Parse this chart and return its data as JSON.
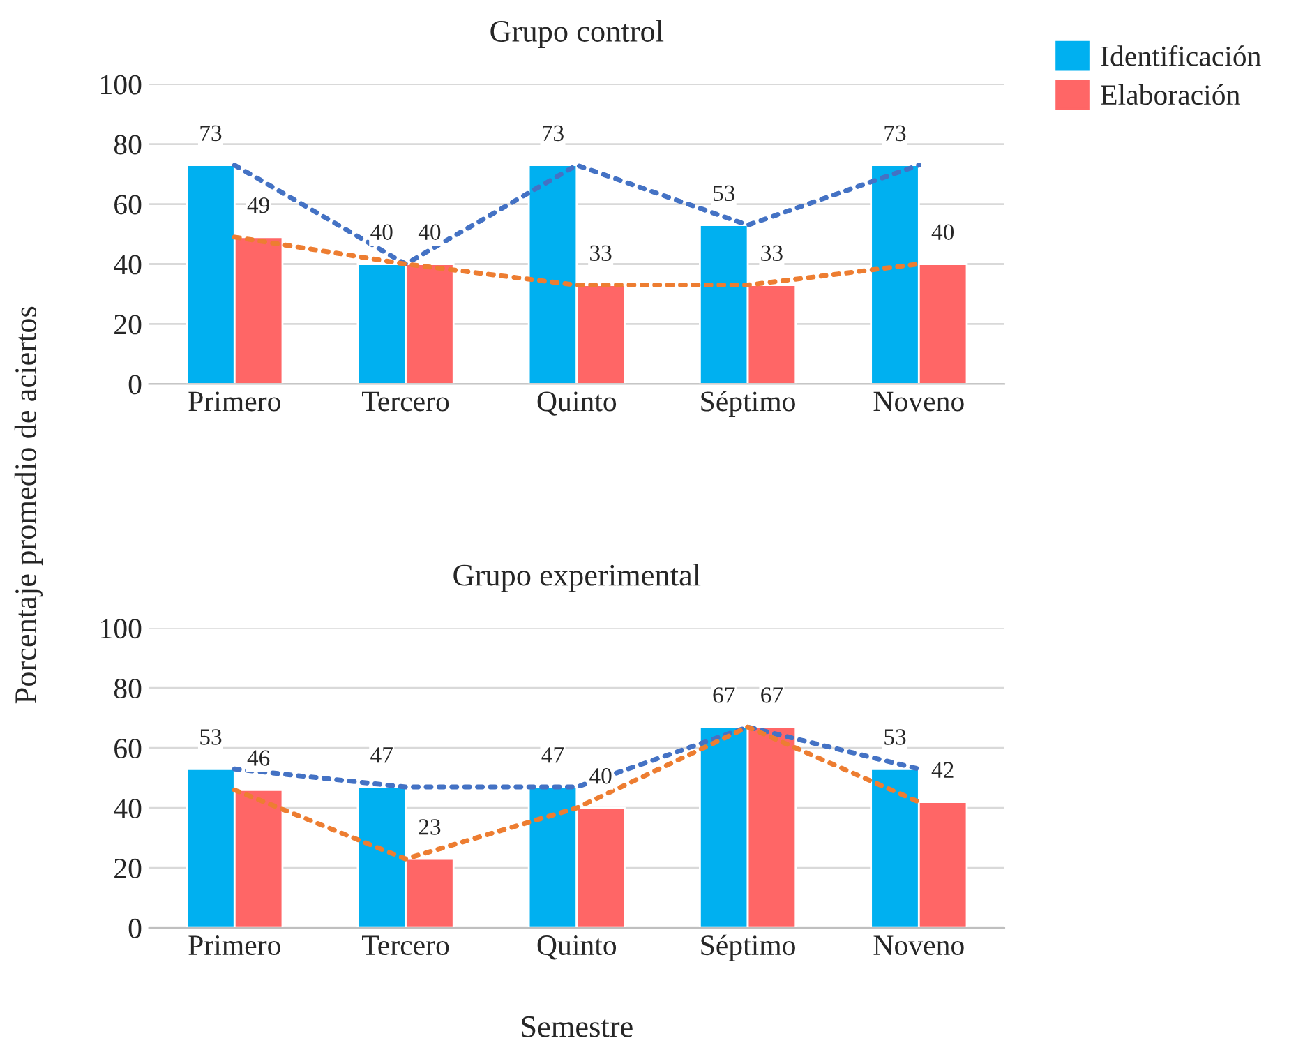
{
  "chart_data": [
    {
      "type": "bar",
      "title": "Grupo control",
      "ylabel": "Porcentaje promedio de aciertos",
      "categories": [
        "Primero",
        "Tercero",
        "Quinto",
        "Séptimo",
        "Noveno"
      ],
      "series": [
        {
          "name": "Identificación",
          "color": "#00b0f0",
          "values": [
            73,
            40,
            73,
            53,
            73
          ],
          "value_labels": [
            "73",
            "40",
            "73",
            "53",
            "73"
          ]
        },
        {
          "name": "Elaboración",
          "color": "#ff6666",
          "values": [
            49,
            40,
            33,
            33,
            40
          ],
          "value_labels": [
            "49",
            "40",
            "33",
            "33",
            "40"
          ]
        },
        {
          "type": "line",
          "color": "#4472c4",
          "values": [
            73,
            40,
            73,
            53,
            73
          ]
        },
        {
          "type": "line",
          "color": "#ed7d31",
          "values": [
            49,
            40,
            33,
            33,
            40
          ]
        }
      ],
      "ylim": [
        0,
        100
      ],
      "yticks": [
        0,
        20,
        40,
        60,
        80,
        100
      ],
      "grid": "y",
      "legend": "top right",
      "line_style": "dotted"
    },
    {
      "type": "bar",
      "title": "Grupo experimental",
      "xlabel": "Semestre",
      "categories": [
        "Primero",
        "Tercero",
        "Quinto",
        "Séptimo",
        "Noveno"
      ],
      "series": [
        {
          "color": "#00b0f0",
          "values": [
            53,
            47,
            47,
            67,
            53
          ],
          "value_labels": [
            "53",
            "47",
            "47",
            "67",
            "53"
          ]
        },
        {
          "color": "#ff6666",
          "values": [
            46,
            23,
            40,
            67,
            42
          ],
          "value_labels": [
            "46",
            "23",
            "40",
            "67",
            "42"
          ]
        },
        {
          "type": "line",
          "color": "#4472c4",
          "values": [
            53,
            47,
            47,
            67,
            53
          ]
        },
        {
          "type": "line",
          "color": "#ed7d31",
          "values": [
            46,
            23,
            40,
            67,
            42
          ]
        }
      ],
      "ylim": [
        0,
        100
      ],
      "yticks": [
        0,
        20,
        40,
        60,
        80,
        100
      ],
      "grid": "y",
      "line_style": "dotted"
    }
  ]
}
